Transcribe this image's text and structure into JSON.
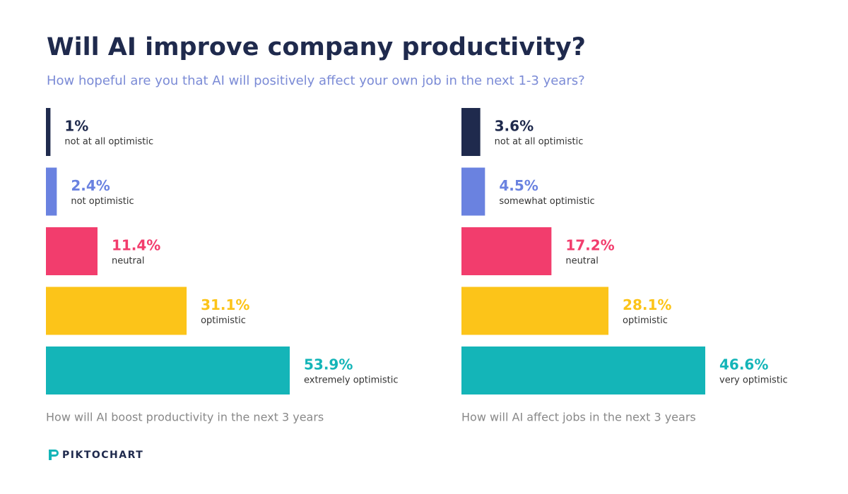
{
  "title": "Will AI improve company productivity?",
  "subtitle": "How hopeful are you that AI will positively affect your own job in the next 1-3 years?",
  "brand": "PIKTOCHART",
  "chart_data": [
    {
      "type": "bar",
      "orientation": "horizontal",
      "categories": [
        "not at all optimistic",
        "not optimistic",
        "neutral",
        "optimistic",
        "extremely optimistic"
      ],
      "values": [
        1,
        2.4,
        11.4,
        31.1,
        53.9
      ],
      "value_labels": [
        "1%",
        "2.4%",
        "11.4%",
        "31.1%",
        "53.9%"
      ],
      "colors": [
        "#1f2a4d",
        "#6a82e0",
        "#f23d6d",
        "#fcc419",
        "#14b5b8"
      ],
      "caption": "How will AI boost productivity in the next 3 years"
    },
    {
      "type": "bar",
      "orientation": "horizontal",
      "categories": [
        "not at all optimistic",
        "somewhat optimistic",
        "neutral",
        "optimistic",
        "very optimistic"
      ],
      "values": [
        3.6,
        4.5,
        17.2,
        28.1,
        46.6
      ],
      "value_labels": [
        "3.6%",
        "4.5%",
        "17.2%",
        "28.1%",
        "46.6%"
      ],
      "colors": [
        "#1f2a4d",
        "#6a82e0",
        "#f23d6d",
        "#fcc419",
        "#14b5b8"
      ],
      "caption": "How will AI affect jobs in the next 3 years"
    }
  ]
}
